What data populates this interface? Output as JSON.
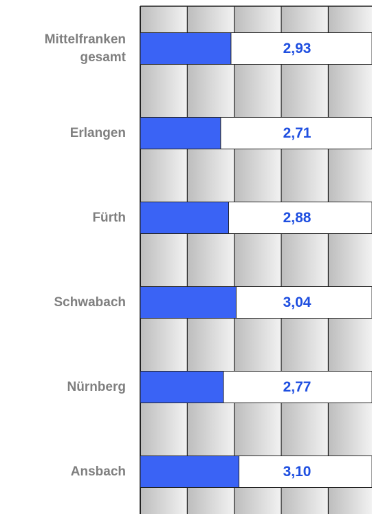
{
  "chart_data": {
    "type": "hbar",
    "categories": [
      "Mittelfranken gesamt",
      "Erlangen",
      "Fürth",
      "Schwabach",
      "Nürnberg",
      "Ansbach"
    ],
    "values": [
      2.93,
      2.71,
      2.88,
      3.04,
      2.77,
      3.1
    ],
    "value_labels": [
      "2,93",
      "2,71",
      "2,88",
      "3,04",
      "2,77",
      "3,10"
    ],
    "color": "#3a63f5",
    "xlim": [
      1,
      5.93
    ],
    "xticks": [
      1,
      2,
      3,
      4,
      5
    ],
    "grid": true
  }
}
